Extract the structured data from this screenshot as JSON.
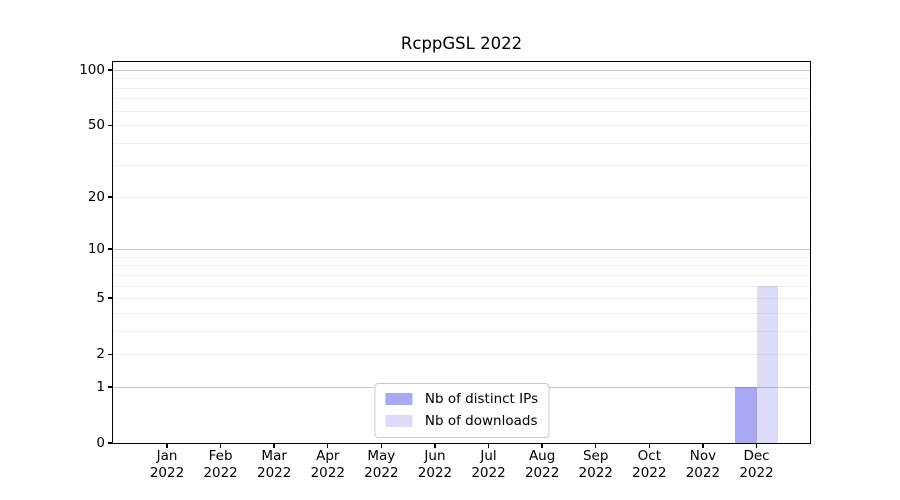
{
  "chart_data": {
    "type": "bar",
    "title": "RcppGSL 2022",
    "categories": [
      {
        "month": "Jan",
        "year": "2022"
      },
      {
        "month": "Feb",
        "year": "2022"
      },
      {
        "month": "Mar",
        "year": "2022"
      },
      {
        "month": "Apr",
        "year": "2022"
      },
      {
        "month": "May",
        "year": "2022"
      },
      {
        "month": "Jun",
        "year": "2022"
      },
      {
        "month": "Jul",
        "year": "2022"
      },
      {
        "month": "Aug",
        "year": "2022"
      },
      {
        "month": "Sep",
        "year": "2022"
      },
      {
        "month": "Oct",
        "year": "2022"
      },
      {
        "month": "Nov",
        "year": "2022"
      },
      {
        "month": "Dec",
        "year": "2022"
      }
    ],
    "series": [
      {
        "name": "Nb of distinct IPs",
        "color": "#5050e67d",
        "values": [
          0,
          0,
          0,
          0,
          0,
          0,
          0,
          0,
          0,
          0,
          0,
          1
        ]
      },
      {
        "name": "Nb of downloads",
        "color": "#6464e639",
        "values": [
          0,
          0,
          0,
          0,
          0,
          0,
          0,
          0,
          0,
          0,
          0,
          6
        ]
      }
    ],
    "y_axis": {
      "scale": "log1p",
      "tick_values": [
        0,
        1,
        2,
        5,
        10,
        20,
        50,
        100
      ],
      "major_gridlines": [
        1,
        10,
        100
      ],
      "minor_gridlines": [
        2,
        3,
        4,
        5,
        6,
        7,
        8,
        9,
        20,
        30,
        40,
        50,
        60,
        70,
        80,
        90
      ],
      "range": [
        0,
        110
      ]
    },
    "legend": {
      "position": "lower center"
    },
    "grid": true
  },
  "colors": {
    "distinct_ips_bar": "#5050e67d",
    "downloads_bar": "#6464e639",
    "major_gridline": "#c6c6c6",
    "minor_gridline": "#efefef",
    "axis_frame": "#000000",
    "background": "#ffffff"
  }
}
